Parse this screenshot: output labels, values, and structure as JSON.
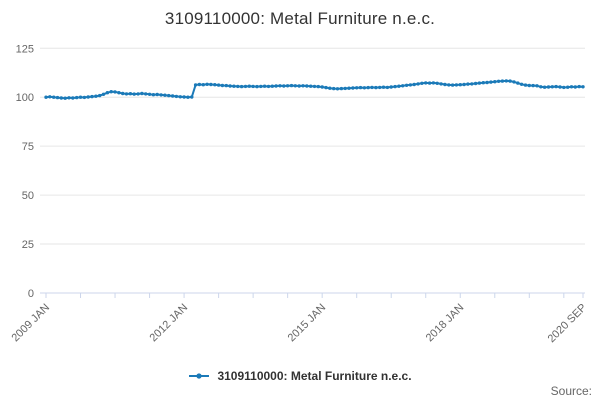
{
  "header": {
    "title": "3109110000: Metal Furniture n.e.c."
  },
  "legend": {
    "items": [
      {
        "label": "3109110000: Metal Furniture n.e.c.",
        "color": "#1b7ab8",
        "marker": "line-with-dot"
      }
    ]
  },
  "footer": {
    "source_label": "Source:"
  },
  "colors": {
    "series": "#1b7ab8",
    "grid": "#e6e6e6",
    "axis": "#ccd6eb",
    "tick_label": "#666666",
    "title_text": "#333333"
  },
  "chart_data": {
    "type": "line",
    "title": "3109110000: Metal Furniture n.e.c.",
    "xlabel": "",
    "ylabel": "",
    "x_start": "2009 JAN",
    "x_end": "2020 SEP",
    "x_frequency": "monthly",
    "x_tick_interval_months": 9,
    "x_labeled_ticks": [
      {
        "month_index": 0,
        "label": "2009 JAN"
      },
      {
        "month_index": 36,
        "label": "2012 JAN"
      },
      {
        "month_index": 72,
        "label": "2015 JAN"
      },
      {
        "month_index": 108,
        "label": "2018 JAN"
      },
      {
        "month_index": 140,
        "label": "2020 SEP"
      }
    ],
    "y_ticks": [
      0,
      25,
      50,
      75,
      100,
      125
    ],
    "ylim": [
      0,
      131
    ],
    "grid": "horizontal-only",
    "legend_position": "bottom-center",
    "series": [
      {
        "name": "3109110000: Metal Furniture n.e.c.",
        "values": [
          100.0,
          100.2,
          100.0,
          99.8,
          99.6,
          99.5,
          99.7,
          99.6,
          99.8,
          100.0,
          99.9,
          100.1,
          100.3,
          100.5,
          100.8,
          101.5,
          102.3,
          102.8,
          102.7,
          102.3,
          101.9,
          101.7,
          101.8,
          101.6,
          101.7,
          101.9,
          101.7,
          101.5,
          101.3,
          101.4,
          101.2,
          101.0,
          100.8,
          100.6,
          100.4,
          100.2,
          100.1,
          100.0,
          100.1,
          106.3,
          106.5,
          106.4,
          106.6,
          106.5,
          106.4,
          106.2,
          106.0,
          105.9,
          105.7,
          105.6,
          105.5,
          105.4,
          105.5,
          105.6,
          105.5,
          105.4,
          105.5,
          105.6,
          105.5,
          105.6,
          105.7,
          105.8,
          105.7,
          105.8,
          105.9,
          105.8,
          105.7,
          105.8,
          105.7,
          105.6,
          105.5,
          105.4,
          105.2,
          104.9,
          104.6,
          104.4,
          104.3,
          104.4,
          104.5,
          104.6,
          104.7,
          104.8,
          104.9,
          104.8,
          104.9,
          105.0,
          104.9,
          105.0,
          105.1,
          105.0,
          105.2,
          105.4,
          105.6,
          105.8,
          106.1,
          106.3,
          106.5,
          106.8,
          107.1,
          107.3,
          107.2,
          107.3,
          107.1,
          106.8,
          106.5,
          106.3,
          106.2,
          106.3,
          106.4,
          106.5,
          106.7,
          106.8,
          107.0,
          107.2,
          107.4,
          107.5,
          107.7,
          107.9,
          108.1,
          108.2,
          108.3,
          108.2,
          107.8,
          107.2,
          106.6,
          106.2,
          106.0,
          105.9,
          105.8,
          105.3,
          105.1,
          105.2,
          105.3,
          105.4,
          105.2,
          105.0,
          105.1,
          105.3,
          105.2,
          105.4,
          105.3
        ]
      }
    ]
  }
}
